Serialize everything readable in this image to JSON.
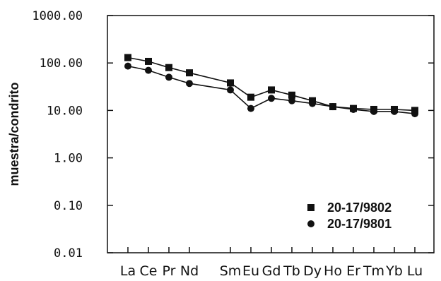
{
  "chart_data": {
    "type": "line",
    "y_scale": "log",
    "ylim": [
      0.01,
      1000
    ],
    "ylabel": "muestra/condrito",
    "y_ticks": [
      "1000.00",
      "100.00",
      "10.00",
      "1.00",
      "0.10",
      "0.01"
    ],
    "categories": [
      "La",
      "Ce",
      "Pr",
      "Nd",
      "",
      "Sm",
      "Eu",
      "Gd",
      "Tb",
      "Dy",
      "Ho",
      "Er",
      "Tm",
      "Yb",
      "Lu"
    ],
    "x_tick_labels": [
      "La",
      "Ce",
      "Pr",
      "Nd",
      "Sm",
      "Eu",
      "Gd",
      "Tb",
      "Dy",
      "Ho",
      "Er",
      "Tm",
      "Yb",
      "Lu"
    ],
    "legend_position": "bottom-right",
    "series": [
      {
        "name": "20-17/9802",
        "marker": "square",
        "x": [
          "La",
          "Ce",
          "Pr",
          "Nd",
          "Sm",
          "Eu",
          "Gd",
          "Tb",
          "Dy",
          "Ho",
          "Er",
          "Tm",
          "Yb",
          "Lu"
        ],
        "values": [
          130,
          108,
          80,
          62,
          38,
          19,
          27,
          21,
          16,
          12,
          11,
          10.5,
          10.5,
          10
        ]
      },
      {
        "name": "20-17/9801",
        "marker": "circle",
        "x": [
          "La",
          "Ce",
          "Pr",
          "Nd",
          "Sm",
          "Eu",
          "Gd",
          "Tb",
          "Dy",
          "Ho",
          "Er",
          "Tm",
          "Yb",
          "Lu"
        ],
        "values": [
          86,
          70,
          50,
          37,
          27,
          11,
          18,
          16,
          14,
          12,
          10.5,
          9.5,
          9.5,
          8.5
        ]
      }
    ]
  }
}
